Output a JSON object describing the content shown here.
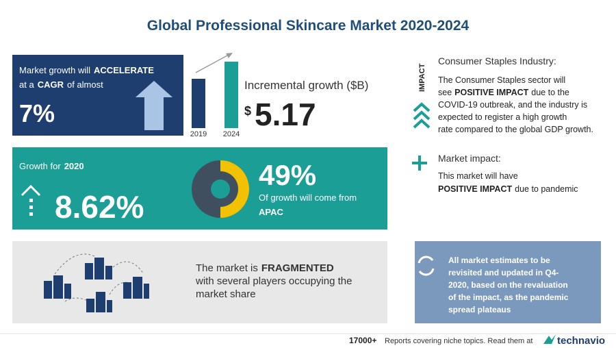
{
  "title": "Global Professional Skincare Market 2020-2024",
  "growth_panel": {
    "line1": [
      "Market growth will",
      "ACCELERATE"
    ],
    "line2": [
      "at a",
      "CAGR",
      "of almost"
    ],
    "cagr": "7%"
  },
  "incremental": {
    "years": [
      "2019",
      "2024"
    ],
    "label": "Incremental growth ($B)",
    "currency": "$",
    "value": "5.17"
  },
  "growth_2020": {
    "label": [
      "Growth for",
      "2020"
    ],
    "value": "8.62%",
    "share": "49%",
    "share_text": "Of growth will come from",
    "region": "APAC"
  },
  "fragmented": {
    "line1": [
      "The market is",
      "FRAGMENTED"
    ],
    "line2": "with several players occupying the",
    "line3": "market share"
  },
  "impact": {
    "heading": "IMPACT",
    "industry_title": "Consumer Staples Industry:",
    "industry_lines": [
      "The Consumer Staples sector will",
      [
        "see",
        "POSITIVE IMPACT",
        "due to the"
      ],
      "COVID-19 outbreak, and the industry is",
      "expected to register a high growth",
      "rate compared to the global GDP growth."
    ],
    "market_title": "Market impact:",
    "market_lines": [
      "This market will have",
      [
        "POSITIVE IMPACT",
        "due to pandemic"
      ]
    ]
  },
  "note": {
    "lines": [
      "All market estimates to be",
      "revisited and updated in Q4-",
      "2020, based on the revaluation",
      "of the impact, as the pandemic",
      "spread plateaus"
    ]
  },
  "footer": {
    "count": "17000+",
    "text": "Reports covering niche topics. Read them at",
    "brand": "technavio"
  }
}
